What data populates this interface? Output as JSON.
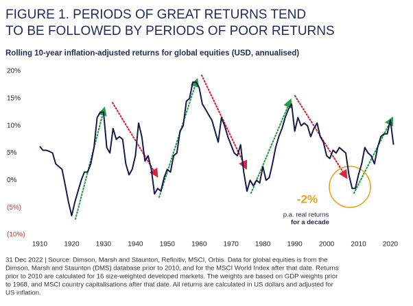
{
  "chart_data": {
    "type": "line",
    "title": [
      "FIGURE 1. PERIODS OF GREAT RETURNS TEND",
      "TO BE FOLLOWED BY PERIODS OF POOR RETURNS"
    ],
    "subtitle": "Rolling 10-year inflation-adjusted returns for global equities (USD, annualised)",
    "x": [
      1910,
      1911,
      1912,
      1913,
      1914,
      1915,
      1916,
      1917,
      1918,
      1919,
      1920,
      1921,
      1922,
      1923,
      1924,
      1925,
      1926,
      1927,
      1928,
      1929,
      1930,
      1931,
      1932,
      1933,
      1934,
      1935,
      1936,
      1937,
      1938,
      1939,
      1940,
      1941,
      1942,
      1943,
      1944,
      1945,
      1946,
      1947,
      1948,
      1949,
      1950,
      1951,
      1952,
      1953,
      1954,
      1955,
      1956,
      1957,
      1958,
      1959,
      1960,
      1961,
      1962,
      1963,
      1964,
      1965,
      1966,
      1967,
      1968,
      1969,
      1970,
      1971,
      1972,
      1973,
      1974,
      1975,
      1976,
      1977,
      1978,
      1979,
      1980,
      1981,
      1982,
      1983,
      1984,
      1985,
      1986,
      1987,
      1988,
      1989,
      1990,
      1991,
      1992,
      1993,
      1994,
      1995,
      1996,
      1997,
      1998,
      1999,
      2000,
      2001,
      2002,
      2003,
      2004,
      2005,
      2006,
      2007,
      2008,
      2009,
      2010,
      2011,
      2012,
      2013,
      2014,
      2015,
      2016,
      2017,
      2018,
      2019,
      2020,
      2021
    ],
    "series": [
      {
        "name": "Rolling 10-year return",
        "color": "#141a4a",
        "values": [
          6.2,
          5.5,
          5.5,
          5.3,
          5.0,
          3,
          2.5,
          2,
          -1,
          -4,
          -6.5,
          -4,
          -2,
          0,
          1.5,
          1.5,
          3,
          6,
          11.5,
          12.5,
          12.5,
          6,
          5,
          9.5,
          7.5,
          8,
          7.5,
          3,
          1,
          2,
          4.5,
          10.5,
          8,
          3.5,
          4.5,
          2,
          -2.5,
          -1.5,
          -2,
          0.5,
          2,
          1.5,
          4.5,
          5,
          9,
          10,
          14.5,
          15,
          18,
          18,
          17,
          14,
          13,
          12,
          11,
          9,
          7,
          11.5,
          10,
          8,
          6.5,
          5,
          4.5,
          6.5,
          1.5,
          -2,
          0,
          -1,
          0,
          -0.5,
          2.5,
          0,
          0.5,
          3,
          6,
          8,
          9.5,
          11.5,
          13,
          14,
          9,
          11.5,
          10,
          10.5,
          10,
          8,
          9.5,
          10.5,
          8,
          7,
          4.5,
          4,
          5.5,
          5,
          6,
          5.5,
          5,
          1,
          -1.5,
          -1.5,
          1,
          3,
          6,
          5,
          4.5,
          3,
          6,
          8,
          8.5,
          8.5,
          11,
          6.5
        ]
      }
    ],
    "xlim": [
      1910,
      2020
    ],
    "xticks": [
      1910,
      1920,
      1930,
      1940,
      1950,
      1960,
      1970,
      1980,
      1990,
      2000,
      2010,
      2020
    ],
    "ylim": [
      -10,
      20
    ],
    "yticks": [
      {
        "value": -10,
        "label": "(10%)"
      },
      {
        "value": -5,
        "label": "(5%)"
      },
      {
        "value": 0,
        "label": "0%"
      },
      {
        "value": 5,
        "label": "5%"
      },
      {
        "value": 10,
        "label": "10%"
      },
      {
        "value": 15,
        "label": "15%"
      },
      {
        "value": 20,
        "label": "20%"
      }
    ],
    "grid": false,
    "annotation": {
      "value": "-2%",
      "lines": [
        "p.a. real returns",
        "for a decade"
      ]
    },
    "footnote": [
      "31 Dec 2022 | Source: Dimson, Marsh and Staunton, Refinitiv, MSCI, Orbis. Data for global equities is from the",
      "Dimson, Marsh and Staunton (DMS) database prior to 2010, and for the MSCI World Index after that date. Returns",
      "prior to 2010 are calculated for 16 size-weighted developed markets. The weights are based on GDP weights prior",
      "to 1968, and MSCI country capitalisations after that date. All returns are calculated in US dollars and adjusted for",
      "US inflation."
    ]
  }
}
